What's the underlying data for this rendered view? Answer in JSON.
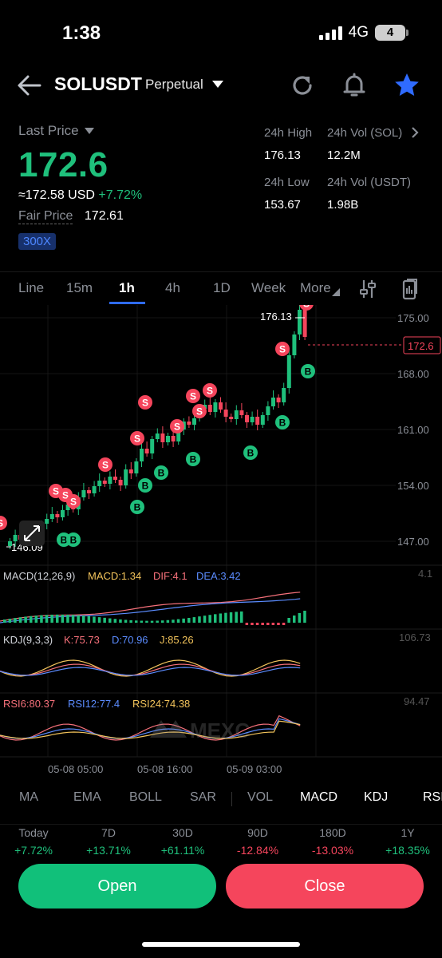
{
  "status": {
    "time": "1:38",
    "network": "4G",
    "battery": "4"
  },
  "header": {
    "symbol": "SOLUSDT",
    "contract_type": "Perpetual"
  },
  "price": {
    "last_label": "Last Price",
    "last": "172.6",
    "approx": "≈172.58 USD",
    "change": "+7.72%",
    "fair_label": "Fair Price",
    "fair": "172.61",
    "leverage": "300X"
  },
  "stats": {
    "high_label": "24h High",
    "high": "176.13",
    "vol_sol_label": "24h Vol (SOL)",
    "vol_sol": "12.2M",
    "low_label": "24h Low",
    "low": "153.67",
    "vol_usdt_label": "24h Vol  (USDT)",
    "vol_usdt": "1.98B"
  },
  "timeframes": [
    "Line",
    "15m",
    "1h",
    "4h",
    "1D",
    "Week",
    "More"
  ],
  "active_timeframe": "1h",
  "chart": {
    "price_axis": [
      "175.00",
      "168.00",
      "161.00",
      "154.00",
      "147.00"
    ],
    "current_price_tag": "172.6",
    "high_marker": "176.13",
    "low_marker": "146.09",
    "time_axis": [
      "05-08 05:00",
      "05-08 16:00",
      "05-09 03:00"
    ],
    "macd": {
      "title": "MACD(12,26,9)",
      "macd": "MACD:1.34",
      "dif": "DIF:4.1",
      "dea": "DEA:3.42",
      "axis": "4.1"
    },
    "kdj": {
      "title": "KDJ(9,3,3)",
      "k": "K:75.73",
      "d": "D:70.96",
      "j": "J:85.26",
      "axis": "106.73"
    },
    "rsi": {
      "r6": "RSI6:80.37",
      "r12": "RSI12:77.4",
      "r24": "RSI24:74.38",
      "axis": "94.47"
    },
    "buy_label": "B",
    "sell_label": "S",
    "colors": {
      "up": "#1fc07c",
      "down": "#f5455c",
      "accent": "#2f6bff"
    }
  },
  "indicators": [
    "MA",
    "EMA",
    "BOLL",
    "SAR",
    "VOL",
    "MACD",
    "KDJ",
    "RSI"
  ],
  "active_indicators": [
    "MACD",
    "KDJ",
    "RSI"
  ],
  "performance": [
    {
      "label": "Today",
      "value": "+7.72%"
    },
    {
      "label": "7D",
      "value": "+13.71%"
    },
    {
      "label": "30D",
      "value": "+61.11%"
    },
    {
      "label": "90D",
      "value": "-12.84%"
    },
    {
      "label": "180D",
      "value": "-13.03%"
    },
    {
      "label": "1Y",
      "value": "+18.35%"
    }
  ],
  "actions": {
    "open": "Open",
    "close": "Close"
  }
}
